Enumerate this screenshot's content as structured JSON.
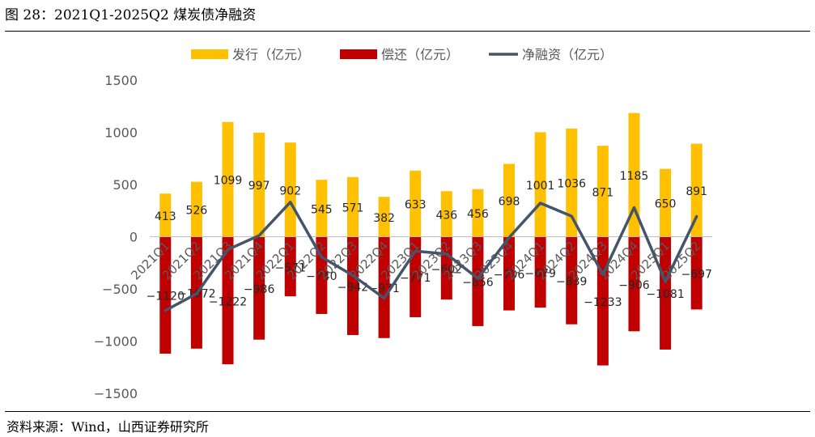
{
  "figure": {
    "title": "图 28：2021Q1-2025Q2 煤炭债净融资",
    "source": "资料来源：Wind，山西证券研究所"
  },
  "colors": {
    "issue": "#FFC000",
    "repay": "#C00000",
    "net": "#44546A",
    "axis_text": "#595959",
    "zero_line": "#BFBFBF"
  },
  "chart_data": {
    "type": "bar",
    "title": "",
    "xlabel": "",
    "ylabel": "",
    "ylim": [
      -1500,
      1500
    ],
    "yticks": [
      1500,
      1000,
      500,
      0,
      -500,
      -1000,
      -1500
    ],
    "ytick_labels": [
      "1500",
      "1000",
      "500",
      "0",
      "−500",
      "−1000",
      "−1500"
    ],
    "grid": false,
    "legend_position": "top-center",
    "categories": [
      "2021Q1",
      "2021Q2",
      "2021Q3",
      "2021Q4",
      "2022Q1",
      "2022Q2",
      "2022Q3",
      "2022Q4",
      "2023Q1",
      "2023Q2",
      "2023Q3",
      "2023Q4",
      "2024Q1",
      "2024Q2",
      "2024Q3",
      "2024Q4",
      "2025Q1",
      "2025Q2"
    ],
    "series": [
      {
        "name": "发行（亿元）",
        "kind": "bar",
        "values": [
          413,
          526,
          1099,
          997,
          902,
          545,
          571,
          382,
          633,
          436,
          456,
          698,
          1001,
          1036,
          871,
          1185,
          650,
          891
        ],
        "labels": [
          "413",
          "526",
          "1099",
          "997",
          "902",
          "545",
          "571",
          "382",
          "633",
          "436",
          "456",
          "698",
          "1001",
          "1036",
          "871",
          "1185",
          "650",
          "891"
        ]
      },
      {
        "name": "偿还（亿元）",
        "kind": "bar",
        "values": [
          -1120,
          -1072,
          -1222,
          -986,
          -571,
          -740,
          -942,
          -971,
          -771,
          -602,
          -856,
          -706,
          -679,
          -839,
          -1233,
          -906,
          -1081,
          -697
        ],
        "labels": [
          "−1120",
          "−1072",
          "−1222",
          "−986",
          "−571",
          "−740",
          "−942",
          "−971",
          "−771",
          "−602",
          "−856",
          "−706",
          "−679",
          "−839",
          "−1233",
          "−906",
          "−1081",
          "−697"
        ]
      },
      {
        "name": "净融资（亿元）",
        "kind": "line",
        "values": [
          -707,
          -546,
          -123,
          11,
          331,
          -195,
          -371,
          -589,
          -138,
          -166,
          -400,
          -8,
          322,
          197,
          -362,
          279,
          -431,
          194
        ]
      }
    ]
  }
}
